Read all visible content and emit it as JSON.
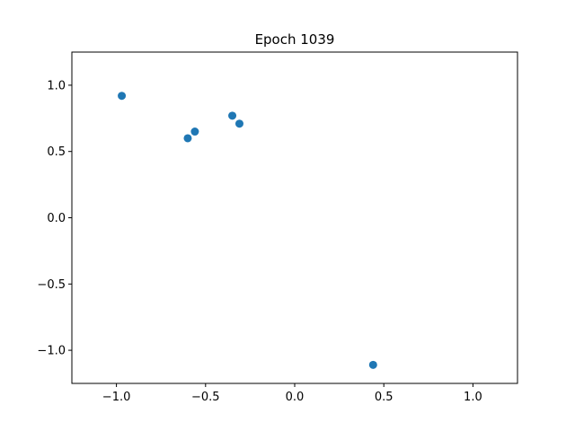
{
  "chart_data": {
    "type": "scatter",
    "title": "Epoch 1039",
    "xlabel": "",
    "ylabel": "",
    "xlim": [
      -1.25,
      1.25
    ],
    "ylim": [
      -1.25,
      1.25
    ],
    "x_ticks": [
      -1.0,
      -0.5,
      0.0,
      0.5,
      1.0
    ],
    "y_ticks": [
      -1.0,
      -0.5,
      0.0,
      0.5,
      1.0
    ],
    "x_tick_labels": [
      "−1.0",
      "−0.5",
      "0.0",
      "0.5",
      "1.0"
    ],
    "y_tick_labels": [
      "−1.0",
      "−0.5",
      "0.0",
      "0.5",
      "1.0"
    ],
    "grid": false,
    "legend": "none",
    "marker_color": "#1f77b4",
    "points": [
      {
        "x": -0.97,
        "y": 0.92
      },
      {
        "x": -0.6,
        "y": 0.6
      },
      {
        "x": -0.56,
        "y": 0.65
      },
      {
        "x": -0.35,
        "y": 0.77
      },
      {
        "x": -0.31,
        "y": 0.71
      },
      {
        "x": 0.44,
        "y": -1.11
      }
    ]
  }
}
